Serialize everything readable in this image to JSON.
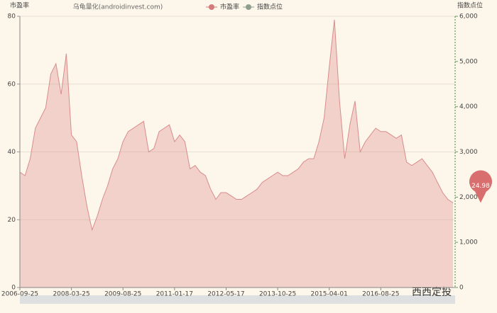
{
  "chart_data": {
    "type": "area",
    "title": "乌龟量化(androidinvest.com)",
    "y_label": "市盈率",
    "y2_label": "指数点位",
    "legend": [
      "市盈率",
      "指数点位"
    ],
    "legend_colors": [
      "#d47a7a",
      "#8f9f8f"
    ],
    "watermark": "西西定投",
    "categories": [
      "2006-09-25",
      null,
      null,
      null,
      null,
      null,
      null,
      null,
      null,
      null,
      "2008-03-25",
      null,
      null,
      null,
      null,
      null,
      null,
      null,
      null,
      null,
      "2009-08-25",
      null,
      null,
      null,
      null,
      null,
      null,
      null,
      null,
      null,
      "2011-01-17",
      null,
      null,
      null,
      null,
      null,
      null,
      null,
      null,
      null,
      "2012-05-17",
      null,
      null,
      null,
      null,
      null,
      null,
      null,
      null,
      null,
      "2013-10-25",
      null,
      null,
      null,
      null,
      null,
      null,
      null,
      null,
      null,
      "2015-04-01",
      null,
      null,
      null,
      null,
      null,
      null,
      null,
      null,
      null,
      "2016-08-25",
      null,
      null,
      null,
      null,
      null,
      null,
      null,
      null,
      null,
      null,
      null,
      null,
      null,
      null
    ],
    "series": [
      {
        "name": "市盈率",
        "color": "#d98c8c",
        "values": [
          34,
          33,
          38,
          47,
          50,
          53,
          63,
          66,
          57,
          69,
          45,
          43,
          33,
          24,
          17,
          21,
          26,
          30,
          35,
          38,
          43,
          46,
          47,
          48,
          49,
          40,
          41,
          46,
          47,
          48,
          43,
          45,
          43,
          35,
          36,
          34,
          33,
          29,
          26,
          28,
          28,
          27,
          26,
          26,
          27,
          28,
          29,
          31,
          32,
          33,
          34,
          33,
          33,
          34,
          35,
          37,
          38,
          38,
          43,
          50,
          65,
          79,
          55,
          38,
          48,
          55,
          40,
          43,
          45,
          47,
          46,
          46,
          45,
          44,
          45,
          37,
          36,
          37,
          38,
          36,
          34,
          31,
          28,
          26,
          24.98
        ]
      }
    ],
    "last_value_label": "24.98",
    "ylim": [
      0,
      80
    ],
    "yticks": [
      0,
      20,
      40,
      60,
      80
    ],
    "y2lim": [
      0,
      6000
    ],
    "y2ticks": [
      0,
      {
        "value": 1000,
        "label": "1,000"
      },
      {
        "value": 2000,
        "label": "2,000"
      },
      {
        "value": 3000,
        "label": "3,000"
      },
      {
        "value": 4000,
        "label": "4,000"
      },
      {
        "value": 5000,
        "label": "5,000"
      },
      {
        "value": 6000,
        "label": "6,000"
      }
    ],
    "grid": true
  }
}
